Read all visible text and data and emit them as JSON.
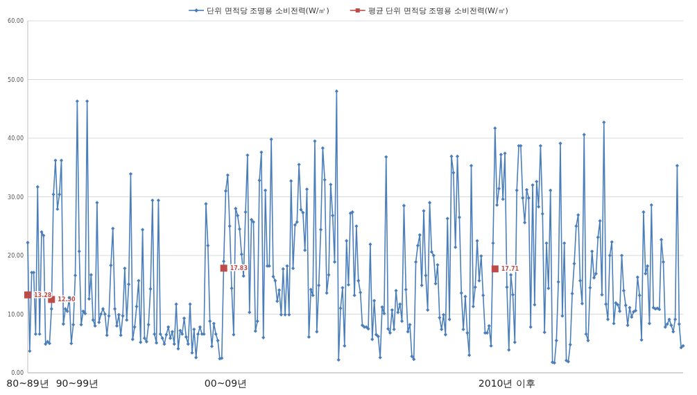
{
  "chart_data": {
    "type": "line",
    "legend": "top",
    "grid": "y",
    "categories": [
      "80~89년",
      null,
      null,
      null,
      null,
      null,
      null,
      null,
      null,
      null,
      null,
      null,
      null,
      null,
      null,
      null,
      null,
      null,
      null,
      null,
      null,
      null,
      null,
      null,
      null,
      "90~99년",
      null,
      null,
      null,
      null,
      null,
      null,
      null,
      null,
      null,
      null,
      null,
      null,
      null,
      null,
      null,
      null,
      null,
      null,
      null,
      null,
      null,
      null,
      null,
      null,
      null,
      null,
      null,
      null,
      null,
      null,
      null,
      null,
      null,
      null,
      null,
      null,
      null,
      null,
      null,
      null,
      null,
      null,
      null,
      null,
      null,
      null,
      null,
      null,
      null,
      null,
      null,
      null,
      null,
      null,
      null,
      null,
      null,
      null,
      null,
      null,
      null,
      null,
      null,
      null,
      null,
      null,
      null,
      null,
      null,
      null,
      null,
      null,
      null,
      null,
      "00~09년",
      null,
      null,
      null,
      null,
      null,
      null,
      null,
      null,
      null,
      null,
      null,
      null,
      null,
      null,
      null,
      null,
      null,
      null,
      null,
      null,
      null,
      null,
      null,
      null,
      null,
      null,
      null,
      null,
      null,
      null,
      null,
      null,
      null,
      null,
      null,
      null,
      null,
      null,
      null,
      null,
      null,
      null,
      null,
      null,
      null,
      null,
      null,
      null,
      null,
      null,
      null,
      null,
      null,
      null,
      null,
      null,
      null,
      null,
      null,
      null,
      null,
      null,
      null,
      null,
      null,
      null,
      null,
      null,
      null,
      null,
      null,
      null,
      null,
      null,
      null,
      null,
      null,
      null,
      null,
      null,
      null,
      null,
      null,
      null,
      null,
      null,
      null,
      null,
      null,
      null,
      null,
      null,
      null,
      null,
      null,
      null,
      null,
      null,
      null,
      null,
      null,
      null,
      null,
      null,
      null,
      null,
      null,
      null,
      null,
      null,
      null,
      null,
      null,
      null,
      null,
      null,
      null,
      null,
      null,
      null,
      null,
      null,
      null,
      null,
      null,
      null,
      null,
      null,
      null,
      null,
      null,
      null,
      null,
      null,
      null,
      null,
      null,
      null,
      null,
      null,
      null,
      "2010년 이후",
      null,
      null,
      null,
      null,
      null,
      null,
      null,
      null,
      null,
      null,
      null,
      null,
      null,
      null,
      null,
      null,
      null,
      null,
      null,
      null,
      null,
      null,
      null,
      null,
      null,
      null,
      null,
      null,
      null,
      null,
      null,
      null,
      null,
      null,
      null,
      null,
      null,
      null,
      null,
      null,
      null,
      null,
      null,
      null,
      null,
      null,
      null,
      null,
      null,
      null,
      null,
      null,
      null,
      null,
      null,
      null,
      null,
      null,
      null,
      null,
      null,
      null,
      null,
      null,
      null,
      null,
      null,
      null,
      null,
      null,
      null,
      null,
      null,
      null,
      null,
      null,
      null,
      null,
      null,
      null,
      null,
      null,
      null,
      null,
      null,
      null,
      null,
      null,
      null
    ],
    "ylim": [
      0,
      60
    ],
    "yticks": [
      {
        "value": 0,
        "label": "0.00"
      },
      {
        "value": 10,
        "label": "10.00"
      },
      {
        "value": 20,
        "label": "20.00"
      },
      {
        "value": 30,
        "label": "30.00"
      },
      {
        "value": 40,
        "label": "40.00"
      },
      {
        "value": 50,
        "label": "50.00"
      },
      {
        "value": 60,
        "label": "60.00"
      }
    ],
    "series": [
      {
        "name": "단위 면적당 조명용 소비전력(W/㎡)",
        "color": "#4a7ebb",
        "marker": "diamond",
        "values": [
          22.2,
          3.7,
          17.1,
          17.1,
          6.6,
          31.7,
          6.6,
          24.0,
          23.4,
          4.9,
          5.3,
          5.0,
          10.9,
          30.4,
          36.2,
          27.9,
          30.4,
          36.2,
          8.3,
          10.9,
          10.5,
          12.8,
          5.0,
          8.2,
          16.6,
          46.3,
          20.7,
          8.2,
          10.5,
          10.1,
          46.3,
          12.6,
          16.7,
          9.0,
          8.0,
          29.0,
          8.6,
          10.0,
          10.9,
          10.0,
          6.4,
          9.7,
          18.3,
          24.6,
          10.9,
          8.0,
          9.9,
          6.4,
          9.7,
          17.8,
          9.0,
          15.1,
          33.9,
          5.7,
          7.8,
          11.3,
          15.7,
          5.2,
          24.4,
          5.9,
          5.3,
          8.2,
          14.3,
          29.4,
          6.6,
          5.1,
          29.4,
          6.6,
          5.9,
          4.9,
          6.5,
          7.8,
          5.9,
          7.0,
          4.9,
          11.7,
          4.1,
          7.2,
          6.6,
          9.3,
          6.1,
          4.9,
          11.7,
          3.4,
          7.4,
          2.6,
          6.6,
          7.8,
          6.6,
          6.6,
          28.8,
          21.7,
          8.8,
          4.5,
          8.4,
          6.6,
          5.5,
          2.4,
          2.5,
          19.0,
          31.0,
          33.7,
          25.0,
          14.4,
          6.5,
          28.0,
          26.8,
          24.5,
          20.2,
          16.5,
          27.4,
          37.1,
          10.3,
          26.1,
          25.7,
          7.1,
          8.8,
          32.8,
          37.6,
          6.0,
          31.1,
          18.2,
          18.2,
          39.8,
          16.4,
          15.7,
          12.2,
          14.1,
          9.9,
          17.7,
          9.9,
          18.2,
          9.9,
          32.7,
          17.8,
          25.2,
          25.7,
          35.5,
          27.8,
          27.3,
          20.9,
          31.3,
          6.1,
          14.2,
          13.2,
          39.5,
          7.0,
          14.9,
          24.4,
          38.3,
          32.9,
          13.6,
          16.7,
          32.1,
          26.8,
          18.9,
          48.0,
          2.2,
          11.0,
          14.5,
          4.6,
          22.5,
          15.0,
          27.2,
          27.4,
          13.2,
          25.0,
          15.7,
          13.7,
          8.1,
          7.8,
          7.8,
          7.5,
          21.9,
          5.7,
          12.3,
          6.5,
          6.2,
          2.6,
          11.2,
          10.1,
          36.8,
          7.5,
          6.8,
          10.7,
          7.4,
          14.0,
          10.3,
          11.7,
          8.8,
          28.5,
          14.2,
          7.0,
          8.2,
          2.8,
          2.3,
          18.9,
          21.7,
          23.5,
          14.9,
          27.6,
          16.6,
          10.7,
          29.0,
          20.6,
          20.0,
          15.2,
          18.4,
          9.4,
          7.4,
          9.9,
          6.5,
          26.3,
          9.1,
          36.9,
          34.1,
          21.4,
          36.9,
          26.5,
          13.6,
          7.4,
          13.0,
          6.8,
          3.0,
          35.3,
          11.3,
          14.6,
          22.5,
          15.7,
          19.9,
          13.2,
          6.8,
          6.8,
          8.0,
          4.6,
          22.1,
          41.7,
          28.6,
          31.4,
          37.2,
          29.6,
          37.4,
          14.6,
          3.9,
          16.7,
          13.3,
          5.2,
          31.1,
          38.7,
          38.7,
          29.8,
          25.6,
          31.2,
          29.8,
          7.8,
          32.0,
          11.6,
          32.6,
          28.3,
          38.7,
          27.1,
          6.9,
          22.1,
          14.4,
          31.1,
          1.8,
          1.7,
          5.5,
          15.5,
          39.1,
          9.7,
          22.1,
          2.1,
          1.9,
          4.8,
          13.5,
          18.6,
          25.0,
          26.9,
          15.7,
          11.8,
          40.6,
          6.6,
          5.5,
          14.5,
          20.7,
          16.2,
          16.9,
          23.1,
          25.9,
          13.3,
          42.7,
          11.7,
          9.1,
          20.0,
          22.3,
          8.4,
          11.9,
          11.6,
          10.5,
          20.0,
          14.0,
          11.5,
          8.1,
          11.1,
          9.5,
          10.4,
          10.6,
          16.3,
          13.2,
          5.6,
          27.4,
          16.9,
          18.2,
          8.4,
          28.6,
          11.1,
          10.9,
          11.0,
          10.8,
          22.7,
          18.9,
          7.8,
          8.3,
          9.1,
          8.1,
          7.0,
          9.1,
          35.3,
          8.3,
          4.3,
          4.6
        ]
      },
      {
        "name": "평균 단위 면적당 조명용 소비전력(W/㎡)",
        "type": "scatter",
        "color": "#be4b48",
        "marker": "square",
        "values": [
          13.28,
          null,
          null,
          null,
          null,
          null,
          null,
          null,
          null,
          null,
          null,
          null,
          12.5,
          null,
          null,
          null,
          null,
          null,
          null,
          null,
          null,
          null,
          null,
          null,
          null,
          null,
          null,
          null,
          null,
          null,
          null,
          null,
          null,
          null,
          null,
          null,
          null,
          null,
          null,
          null,
          null,
          null,
          null,
          null,
          null,
          null,
          null,
          null,
          null,
          null,
          null,
          null,
          null,
          null,
          null,
          null,
          null,
          null,
          null,
          null,
          null,
          null,
          null,
          null,
          null,
          null,
          null,
          null,
          null,
          null,
          null,
          null,
          null,
          null,
          null,
          null,
          null,
          null,
          null,
          null,
          null,
          null,
          null,
          null,
          null,
          null,
          null,
          null,
          null,
          null,
          null,
          null,
          null,
          null,
          null,
          null,
          null,
          null,
          null,
          17.83,
          null,
          null,
          null,
          null,
          null,
          null,
          null,
          null,
          null,
          null,
          null,
          null,
          null,
          null,
          null,
          null,
          null,
          null,
          null,
          null,
          null,
          null,
          null,
          null,
          null,
          null,
          null,
          null,
          null,
          null,
          null,
          null,
          null,
          null,
          null,
          null,
          null,
          null,
          null,
          null,
          null,
          null,
          null,
          null,
          null,
          null,
          null,
          null,
          null,
          null,
          null,
          null,
          null,
          null,
          null,
          null,
          null,
          null,
          null,
          null,
          null,
          null,
          null,
          null,
          null,
          null,
          null,
          null,
          null,
          null,
          null,
          null,
          null,
          null,
          null,
          null,
          null,
          null,
          null,
          null,
          null,
          null,
          null,
          null,
          null,
          null,
          null,
          null,
          null,
          null,
          null,
          null,
          null,
          null,
          null,
          null,
          null,
          null,
          null,
          null,
          null,
          null,
          null,
          null,
          null,
          null,
          null,
          null,
          null,
          null,
          null,
          null,
          null,
          null,
          null,
          null,
          null,
          null,
          null,
          null,
          null,
          null,
          null,
          null,
          null,
          null,
          null,
          null,
          null,
          null,
          null,
          null,
          null,
          null,
          null,
          null,
          17.71,
          null,
          null,
          null,
          null,
          null,
          null,
          null,
          null,
          null,
          null,
          null,
          null,
          null,
          null,
          null,
          null,
          null,
          null,
          null,
          null,
          null,
          null,
          null,
          null,
          null,
          null,
          null,
          null,
          null,
          null,
          null,
          null,
          null,
          null,
          null,
          null,
          null,
          null,
          null,
          null,
          null,
          null,
          null,
          null,
          null,
          null,
          null,
          null,
          null,
          null,
          null,
          null,
          null,
          null,
          null,
          null,
          null,
          null,
          null,
          null,
          null,
          null,
          null,
          null,
          null,
          null,
          null,
          null,
          null,
          null,
          null,
          null,
          null,
          null,
          null,
          null,
          null,
          null,
          null,
          null,
          null,
          null,
          null,
          null,
          null,
          null,
          null,
          null,
          null,
          null,
          null,
          null,
          null,
          null,
          null
        ],
        "value_labels": [
          "13.28",
          null,
          null,
          null,
          null,
          null,
          null,
          null,
          null,
          null,
          null,
          null,
          "12.50",
          null,
          null,
          null,
          null,
          null,
          null,
          null,
          null,
          null,
          null,
          null,
          null,
          null,
          null,
          null,
          null,
          null,
          null,
          null,
          null,
          null,
          null,
          null,
          null,
          null,
          null,
          null,
          null,
          null,
          null,
          null,
          null,
          null,
          null,
          null,
          null,
          null,
          null,
          null,
          null,
          null,
          null,
          null,
          null,
          null,
          null,
          null,
          null,
          null,
          null,
          null,
          null,
          null,
          null,
          null,
          null,
          null,
          null,
          null,
          null,
          null,
          null,
          null,
          null,
          null,
          null,
          null,
          null,
          null,
          null,
          null,
          null,
          null,
          null,
          null,
          null,
          null,
          null,
          null,
          null,
          null,
          null,
          null,
          null,
          null,
          null,
          "17.83",
          null,
          null,
          null,
          null,
          null,
          null,
          null,
          null,
          null,
          null,
          null,
          null,
          null,
          null,
          null,
          null,
          null,
          null,
          null,
          null,
          null,
          null,
          null,
          null,
          null,
          null,
          null,
          null,
          null,
          null,
          null,
          null,
          null,
          null,
          null,
          null,
          null,
          null,
          null,
          null,
          null,
          null,
          null,
          null,
          null,
          null,
          null,
          null,
          null,
          null,
          null,
          null,
          null,
          null,
          null,
          null,
          null,
          null,
          null,
          null,
          null,
          null,
          null,
          null,
          null,
          null,
          null,
          null,
          null,
          null,
          null,
          null,
          null,
          null,
          null,
          null,
          null,
          null,
          null,
          null,
          null,
          null,
          null,
          null,
          null,
          null,
          null,
          null,
          null,
          null,
          null,
          null,
          null,
          null,
          null,
          null,
          null,
          null,
          null,
          null,
          null,
          null,
          null,
          null,
          null,
          null,
          null,
          null,
          null,
          null,
          null,
          null,
          null,
          null,
          null,
          null,
          null,
          null,
          null,
          null,
          null,
          null,
          null,
          null,
          null,
          null,
          null,
          null,
          null,
          null,
          null,
          null,
          null,
          null,
          null,
          null,
          "17.71",
          null,
          null,
          null,
          null,
          null,
          null,
          null,
          null,
          null,
          null,
          null,
          null,
          null,
          null,
          null,
          null,
          null,
          null,
          null,
          null,
          null,
          null,
          null,
          null,
          null,
          null,
          null,
          null,
          null,
          null,
          null,
          null,
          null,
          null,
          null,
          null,
          null,
          null,
          null,
          null,
          null,
          null,
          null,
          null,
          null,
          null,
          null,
          null,
          null,
          null,
          null,
          null,
          null,
          null,
          null,
          null,
          null,
          null,
          null,
          null,
          null,
          null,
          null,
          null,
          null,
          null,
          null,
          null,
          null,
          null,
          null,
          null,
          null,
          null,
          null,
          null,
          null,
          null,
          null,
          null,
          null,
          null,
          null,
          null,
          null,
          null,
          null,
          null,
          null,
          null,
          null,
          null,
          null,
          null,
          null
        ]
      }
    ]
  }
}
